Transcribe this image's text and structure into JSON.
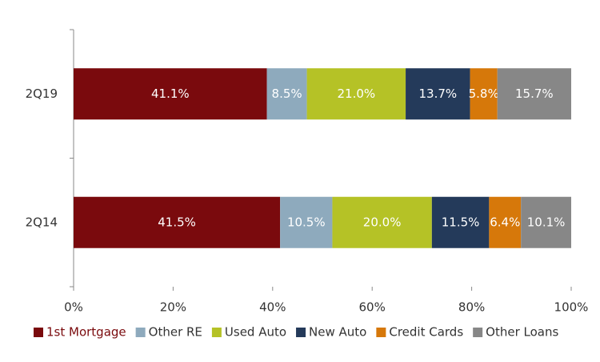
{
  "chart_data": {
    "type": "bar",
    "orientation": "horizontal",
    "stacked": "percent",
    "categories": [
      "2Q19",
      "2Q14"
    ],
    "series": [
      {
        "name": "1st Mortgage",
        "color": "#7a0a0d",
        "values": [
          41.1,
          41.5
        ],
        "value_labels": [
          "41.1%",
          "41.5%"
        ]
      },
      {
        "name": "Other RE",
        "color": "#8eaabd",
        "values": [
          8.5,
          10.5
        ],
        "value_labels": [
          "8.5%",
          "10.5%"
        ]
      },
      {
        "name": "Used Auto",
        "color": "#b5c226",
        "values": [
          21.0,
          20.0
        ],
        "value_labels": [
          "21.0%",
          "20.0%"
        ]
      },
      {
        "name": "New Auto",
        "color": "#243a5a",
        "values": [
          13.7,
          11.5
        ],
        "value_labels": [
          "13.7%",
          "11.5%"
        ]
      },
      {
        "name": "Credit Cards",
        "color": "#d6780a",
        "values": [
          5.8,
          6.4
        ],
        "value_labels": [
          "5.8%",
          "6.4%"
        ]
      },
      {
        "name": "Other Loans",
        "color": "#878787",
        "values": [
          15.7,
          10.1
        ],
        "value_labels": [
          "15.7%",
          "10.1%"
        ]
      }
    ],
    "xlim": [
      0,
      100
    ],
    "xticks": [
      {
        "value": 0,
        "label": "0%"
      },
      {
        "value": 20,
        "label": "20%"
      },
      {
        "value": 40,
        "label": "40%"
      },
      {
        "value": 60,
        "label": "60%"
      },
      {
        "value": 80,
        "label": "80%"
      },
      {
        "value": 100,
        "label": "100%"
      }
    ],
    "legend": "bottom"
  }
}
